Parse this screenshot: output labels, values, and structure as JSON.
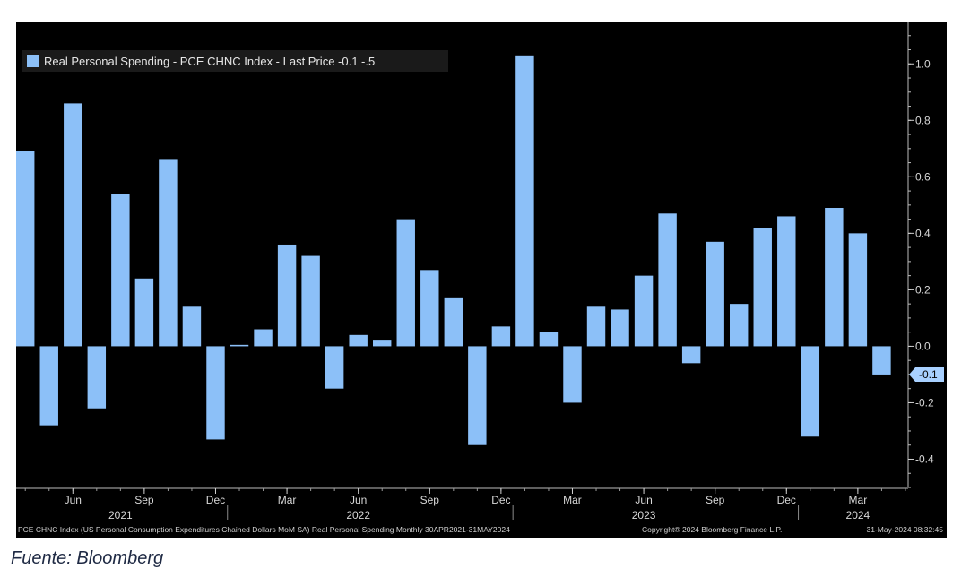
{
  "chart_data": {
    "type": "bar",
    "legend": "Real Personal Spending - PCE CHNC Index - Last Price -0.1 -.5",
    "last_value_label": "-0.1",
    "colors": {
      "bar": "#8cc0f8",
      "background": "#000000",
      "axis_text": "#d8d8d8",
      "marker": "#a8d0ff"
    },
    "ylim": [
      -0.5,
      1.15
    ],
    "y_ticks": [
      -0.4,
      -0.2,
      0.0,
      0.2,
      0.4,
      0.6,
      0.8,
      1.0
    ],
    "y_tick_labels": [
      "-0.4",
      "-0.2",
      "0.0",
      "0.2",
      "0.4",
      "0.6",
      "0.8",
      "1.0"
    ],
    "categories": [
      "Apr 2021",
      "May 2021",
      "Jun 2021",
      "Jul 2021",
      "Aug 2021",
      "Sep 2021",
      "Oct 2021",
      "Nov 2021",
      "Dec 2021",
      "Jan 2022",
      "Feb 2022",
      "Mar 2022",
      "Apr 2022",
      "May 2022",
      "Jun 2022",
      "Jul 2022",
      "Aug 2022",
      "Sep 2022",
      "Oct 2022",
      "Nov 2022",
      "Dec 2022",
      "Jan 2023",
      "Feb 2023",
      "Mar 2023",
      "Apr 2023",
      "May 2023",
      "Jun 2023",
      "Jul 2023",
      "Aug 2023",
      "Sep 2023",
      "Oct 2023",
      "Nov 2023",
      "Dec 2023",
      "Jan 2024",
      "Feb 2024",
      "Mar 2024",
      "Apr 2024",
      "May 2024"
    ],
    "values": [
      0.69,
      -0.28,
      0.86,
      -0.22,
      0.54,
      0.24,
      0.66,
      0.14,
      -0.33,
      0.005,
      0.06,
      0.36,
      0.32,
      -0.15,
      0.04,
      0.02,
      0.45,
      0.27,
      0.17,
      -0.35,
      0.07,
      1.03,
      0.05,
      -0.2,
      0.14,
      0.13,
      0.25,
      0.47,
      -0.06,
      0.37,
      0.15,
      0.42,
      0.46,
      -0.32,
      0.49,
      0.4,
      -0.1,
      null
    ],
    "x_ticks": [
      {
        "index": 2,
        "label": "Jun"
      },
      {
        "index": 5,
        "label": "Sep"
      },
      {
        "index": 8,
        "label": "Dec"
      },
      {
        "index": 11,
        "label": "Mar"
      },
      {
        "index": 14,
        "label": "Jun"
      },
      {
        "index": 17,
        "label": "Sep"
      },
      {
        "index": 20,
        "label": "Dec"
      },
      {
        "index": 23,
        "label": "Mar"
      },
      {
        "index": 26,
        "label": "Jun"
      },
      {
        "index": 29,
        "label": "Sep"
      },
      {
        "index": 32,
        "label": "Dec"
      },
      {
        "index": 35,
        "label": "Mar"
      }
    ],
    "years": [
      {
        "center_index": 4,
        "label": "2021"
      },
      {
        "center_index": 14,
        "label": "2022"
      },
      {
        "center_index": 26,
        "label": "2023"
      },
      {
        "center_index": 35,
        "label": "2024"
      }
    ],
    "year_boundaries": [
      8.5,
      20.5,
      32.5
    ]
  },
  "footer": {
    "description": "PCE CHNC Index (US Personal Consumption Expenditures Chained Dollars MoM SA) Real Personal Spending  Monthly 30APR2021-31MAY2024",
    "copyright": "Copyright® 2024 Bloomberg Finance L.P.",
    "timestamp": "31-May-2024 08:32:45"
  },
  "caption": "Fuente: Bloomberg"
}
